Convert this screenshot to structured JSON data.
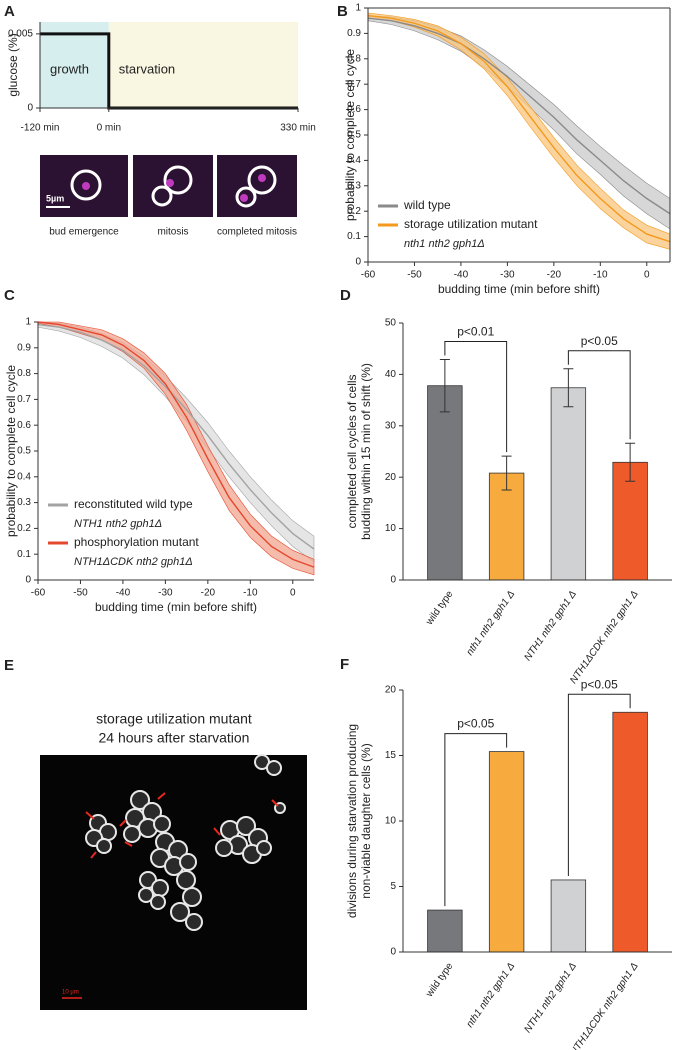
{
  "chart_data": [
    {
      "panel": "A",
      "type": "line",
      "ylabel": "glucose (%)",
      "x": [
        -120,
        0,
        0,
        330
      ],
      "values": [
        0.005,
        0.005,
        0,
        0
      ],
      "color": "#111111",
      "regions": [
        {
          "name": "growth",
          "from": -120,
          "to": 0,
          "color": "#d6eeee"
        },
        {
          "name": "starvation",
          "from": 0,
          "to": 330,
          "color": "#f9f6e1"
        }
      ],
      "xlim": [
        -120,
        330
      ],
      "xticks": [
        {
          "value": -120,
          "label": "-120 min"
        },
        {
          "value": 0,
          "label": "0 min"
        },
        {
          "value": 330,
          "label": "330 min"
        }
      ],
      "ylim": [
        0,
        0.0058
      ],
      "yticks": [
        0,
        0.005
      ]
    },
    {
      "panel": "B",
      "type": "line",
      "xlabel": "budding time (min before shift)",
      "ylabel": "probability to complete cell cycle",
      "legend": "lower left",
      "x": [
        -60,
        -55,
        -50,
        -45,
        -40,
        -35,
        -30,
        -25,
        -20,
        -15,
        -10,
        -5,
        0,
        5
      ],
      "series": [
        {
          "name": "wild type",
          "color": "#8a8a8a",
          "band_color": "#c9c9c9",
          "values": [
            0.96,
            0.95,
            0.93,
            0.9,
            0.86,
            0.8,
            0.73,
            0.65,
            0.57,
            0.48,
            0.4,
            0.32,
            0.25,
            0.19
          ],
          "upper": [
            0.97,
            0.965,
            0.95,
            0.925,
            0.89,
            0.835,
            0.77,
            0.695,
            0.62,
            0.535,
            0.455,
            0.38,
            0.31,
            0.25
          ],
          "lower": [
            0.95,
            0.935,
            0.91,
            0.875,
            0.83,
            0.765,
            0.69,
            0.605,
            0.52,
            0.425,
            0.345,
            0.26,
            0.19,
            0.13
          ]
        },
        {
          "name": "storage utilization mutant",
          "genotype": "nth1 nth2 gph1Δ",
          "color": "#f39a1e",
          "band_color": "#f9c67c",
          "values": [
            0.97,
            0.96,
            0.94,
            0.91,
            0.86,
            0.79,
            0.69,
            0.57,
            0.45,
            0.34,
            0.25,
            0.17,
            0.11,
            0.08
          ],
          "upper": [
            0.98,
            0.97,
            0.955,
            0.93,
            0.885,
            0.82,
            0.725,
            0.61,
            0.49,
            0.38,
            0.29,
            0.205,
            0.145,
            0.11
          ],
          "lower": [
            0.96,
            0.95,
            0.925,
            0.89,
            0.835,
            0.76,
            0.655,
            0.53,
            0.41,
            0.3,
            0.21,
            0.135,
            0.075,
            0.05
          ]
        }
      ],
      "xlim": [
        -60,
        5
      ],
      "xticks": [
        -60,
        -50,
        -40,
        -30,
        -20,
        -10,
        0
      ],
      "ylim": [
        0,
        1
      ],
      "yticks": [
        0,
        0.1,
        0.2,
        0.3,
        0.4,
        0.5,
        0.6,
        0.7,
        0.8,
        0.9,
        1
      ]
    },
    {
      "panel": "C",
      "type": "line",
      "xlabel": "budding time (min before shift)",
      "ylabel": "probability to complete cell cycle",
      "legend": "lower left",
      "x": [
        -60,
        -55,
        -50,
        -45,
        -40,
        -35,
        -30,
        -25,
        -20,
        -15,
        -10,
        -5,
        0,
        5
      ],
      "series": [
        {
          "name": "reconstituted wild type",
          "genotype": "NTH1 nth2 gph1Δ",
          "color": "#a3a3a3",
          "band_color": "#dcdcdc",
          "values": [
            0.99,
            0.98,
            0.96,
            0.93,
            0.89,
            0.83,
            0.75,
            0.66,
            0.56,
            0.45,
            0.35,
            0.26,
            0.18,
            0.12
          ],
          "upper": [
            1,
            0.995,
            0.98,
            0.955,
            0.92,
            0.865,
            0.79,
            0.705,
            0.61,
            0.5,
            0.4,
            0.31,
            0.23,
            0.17
          ],
          "lower": [
            0.98,
            0.965,
            0.94,
            0.905,
            0.86,
            0.795,
            0.71,
            0.615,
            0.51,
            0.4,
            0.3,
            0.21,
            0.13,
            0.07
          ]
        },
        {
          "name": "phosphorylation mutant",
          "genotype": "NTH1ΔCDK nth2 gph1Δ",
          "color": "#e5482e",
          "band_color": "#f1a48f",
          "values": [
            1,
            0.99,
            0.97,
            0.95,
            0.91,
            0.85,
            0.76,
            0.63,
            0.47,
            0.32,
            0.21,
            0.13,
            0.08,
            0.05
          ],
          "upper": [
            1,
            1,
            0.985,
            0.97,
            0.935,
            0.88,
            0.8,
            0.68,
            0.52,
            0.37,
            0.255,
            0.17,
            0.115,
            0.08
          ],
          "lower": [
            0.995,
            0.98,
            0.955,
            0.93,
            0.885,
            0.82,
            0.72,
            0.58,
            0.42,
            0.27,
            0.165,
            0.09,
            0.045,
            0.02
          ]
        }
      ],
      "xlim": [
        -60,
        5
      ],
      "xticks": [
        -60,
        -50,
        -40,
        -30,
        -20,
        -10,
        0
      ],
      "ylim": [
        0,
        1
      ],
      "yticks": [
        0,
        0.1,
        0.2,
        0.3,
        0.4,
        0.5,
        0.6,
        0.7,
        0.8,
        0.9,
        1
      ]
    },
    {
      "panel": "D",
      "type": "bar",
      "ylabel": [
        "completed cell cycles of cells",
        "budding within 15 min of shift  (%)"
      ],
      "categories": [
        "wild type",
        "nth1 nth2 gph1 Δ",
        "NTH1 nth2 gph1 Δ",
        "NTH1ΔCDK nth2 gph1 Δ"
      ],
      "values": [
        37.8,
        20.8,
        37.4,
        22.9
      ],
      "errors": [
        5.1,
        3.3,
        3.7,
        3.7
      ],
      "colors": [
        "#77787b",
        "#f7ab3e",
        "#d0d1d3",
        "#ee5a2a"
      ],
      "significance": [
        "p<0.01",
        "p<0.05"
      ],
      "ylim": [
        0,
        50
      ],
      "yticks": [
        0,
        10,
        20,
        30,
        40,
        50
      ]
    },
    {
      "panel": "F",
      "type": "bar",
      "ylabel": [
        "divisions during starvation producing",
        "non-viable  daughter cells  (%)"
      ],
      "categories": [
        "wild type",
        "nth1 nth2 gph1 Δ",
        "NTH1 nth2 gph1 Δ",
        "NTH1ΔCDK nth2 gph1 Δ"
      ],
      "values": [
        3.2,
        15.3,
        5.5,
        18.3
      ],
      "colors": [
        "#77787b",
        "#f7ab3e",
        "#d0d1d3",
        "#ee5a2a"
      ],
      "significance": [
        "p<0.05",
        "p<0.05"
      ],
      "ylim": [
        0,
        20
      ],
      "yticks": [
        0,
        5,
        10,
        15,
        20
      ]
    }
  ],
  "micrographs": {
    "scale_bar": "5µm",
    "captions": [
      "bud emergence",
      "mitosis",
      "completed mitosis"
    ]
  },
  "panel_e": {
    "panel": "E",
    "title": [
      "storage utilization mutant",
      "24 hours after starvation"
    ],
    "scale_bar": "10 µm"
  }
}
